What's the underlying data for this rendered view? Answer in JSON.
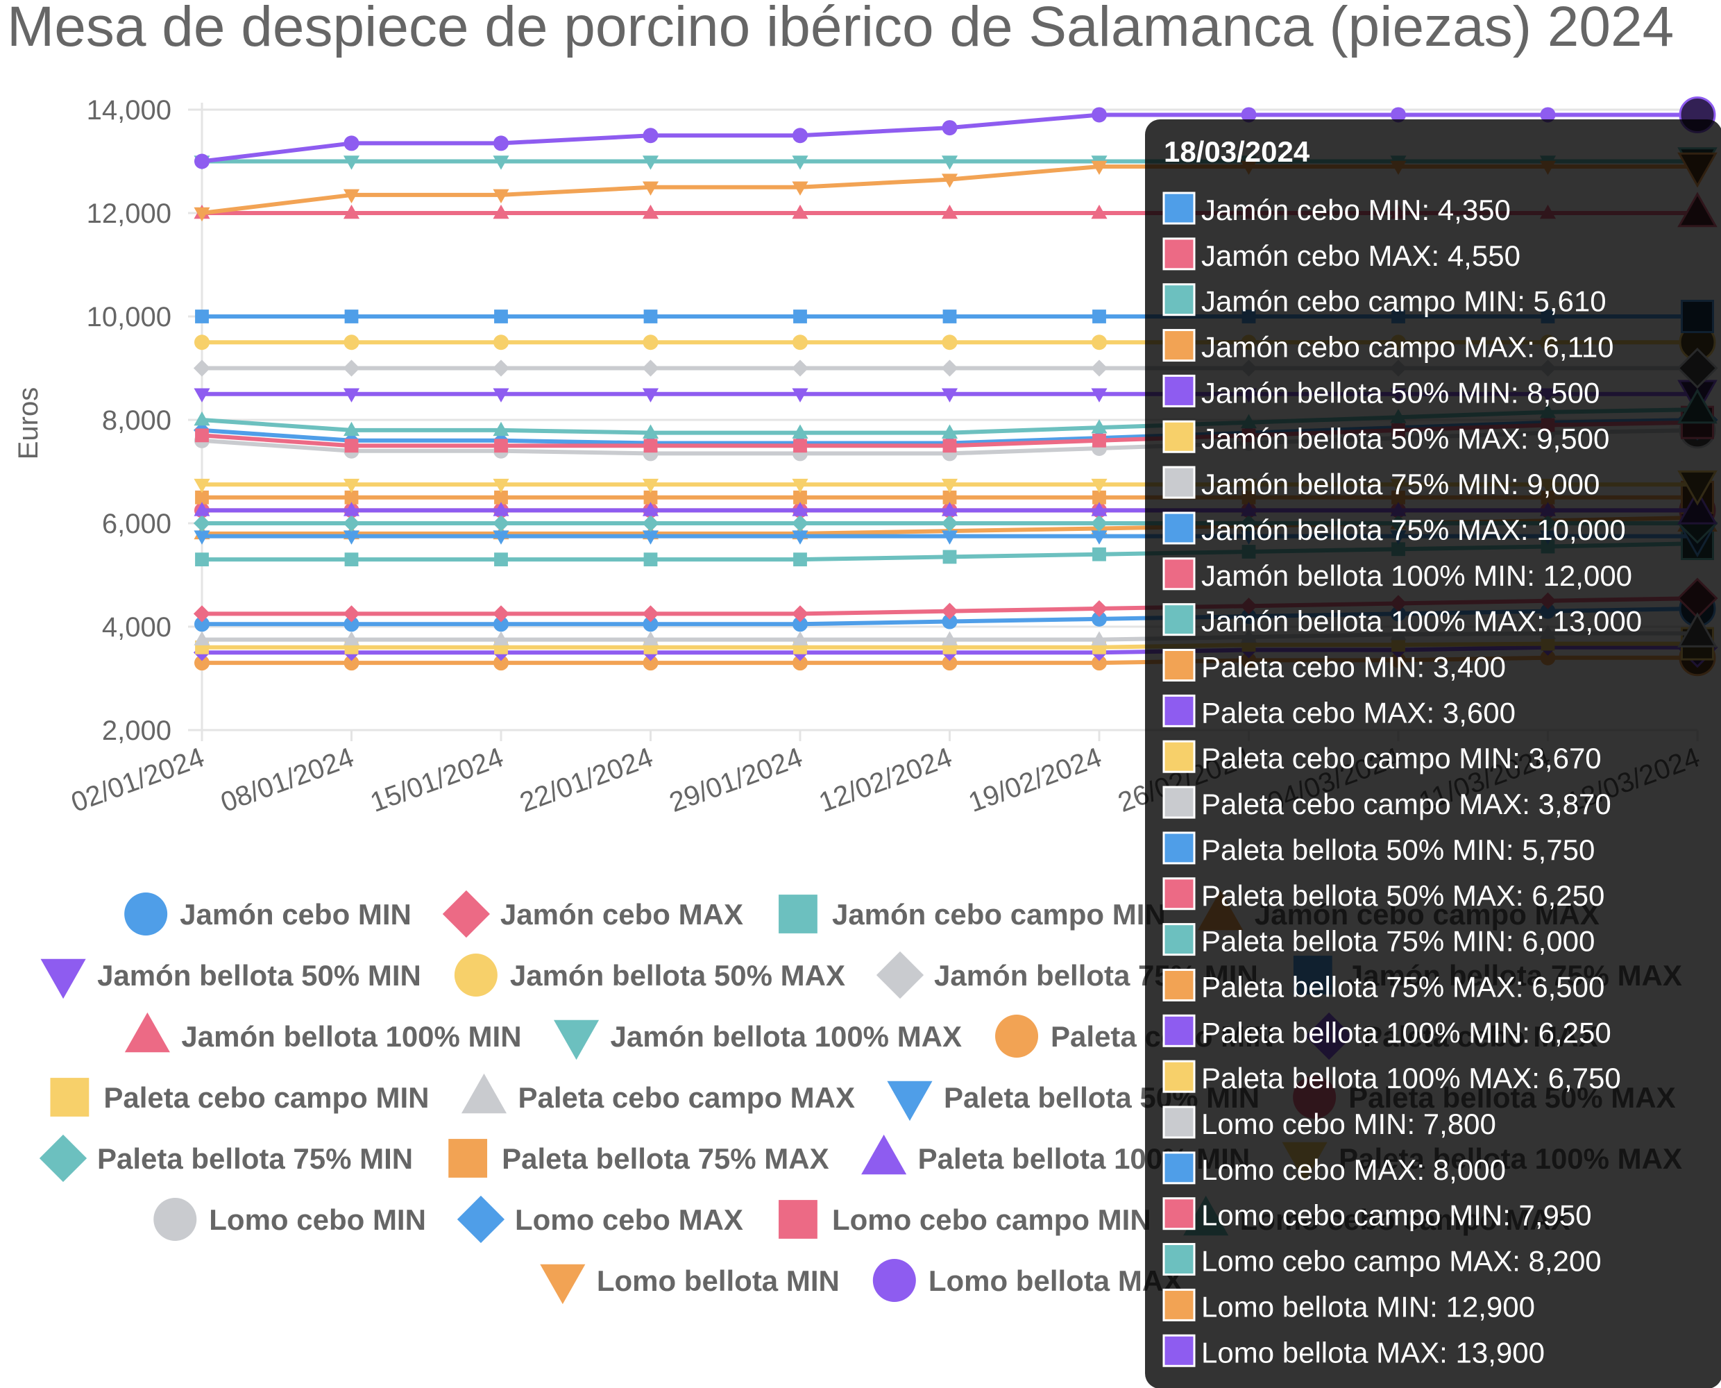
{
  "chart_data": {
    "type": "line",
    "title": "Mesa de despiece de porcino ibérico de Salamanca (piezas) 2024",
    "xlabel": "",
    "ylabel": "Euros",
    "ylim": [
      2000,
      14000
    ],
    "yticks": [
      "2,000",
      "4,000",
      "6,000",
      "8,000",
      "10,000",
      "12,000",
      "14,000"
    ],
    "ytick_values": [
      2000,
      4000,
      6000,
      8000,
      10000,
      12000,
      14000
    ],
    "x": [
      "02/01/2024",
      "08/01/2024",
      "15/01/2024",
      "22/01/2024",
      "29/01/2024",
      "12/02/2024",
      "19/02/2024",
      "26/02/2024",
      "04/03/2024",
      "11/03/2024",
      "18/03/2024"
    ],
    "grid": "horizontal",
    "legend_placement": "bottom",
    "series": [
      {
        "name": "Jamón cebo MIN",
        "color": "#4f9ee8",
        "marker": "circle",
        "values": [
          4050,
          4050,
          4050,
          4050,
          4050,
          4100,
          4150,
          4200,
          4250,
          4300,
          4350
        ]
      },
      {
        "name": "Jamón cebo MAX",
        "color": "#ec6a85",
        "marker": "diamond",
        "values": [
          4250,
          4250,
          4250,
          4250,
          4250,
          4300,
          4350,
          4400,
          4450,
          4500,
          4550
        ]
      },
      {
        "name": "Jamón cebo campo MIN",
        "color": "#6cc0bf",
        "marker": "square",
        "values": [
          5300,
          5300,
          5300,
          5300,
          5300,
          5350,
          5400,
          5450,
          5500,
          5550,
          5610
        ]
      },
      {
        "name": "Jamón cebo campo MAX",
        "color": "#f2a354",
        "marker": "triangle-up",
        "values": [
          5800,
          5800,
          5800,
          5800,
          5800,
          5850,
          5900,
          5950,
          6000,
          6050,
          6110
        ]
      },
      {
        "name": "Jamón bellota 50% MIN",
        "color": "#8e5cf0",
        "marker": "triangle-down",
        "values": [
          8500,
          8500,
          8500,
          8500,
          8500,
          8500,
          8500,
          8500,
          8500,
          8500,
          8500
        ]
      },
      {
        "name": "Jamón bellota 50% MAX",
        "color": "#f7d06a",
        "marker": "circle",
        "values": [
          9500,
          9500,
          9500,
          9500,
          9500,
          9500,
          9500,
          9500,
          9500,
          9500,
          9500
        ]
      },
      {
        "name": "Jamón bellota 75% MIN",
        "color": "#c9cbcf",
        "marker": "diamond",
        "values": [
          9000,
          9000,
          9000,
          9000,
          9000,
          9000,
          9000,
          9000,
          9000,
          9000,
          9000
        ]
      },
      {
        "name": "Jamón bellota 75% MAX",
        "color": "#4f9ee8",
        "marker": "square",
        "values": [
          10000,
          10000,
          10000,
          10000,
          10000,
          10000,
          10000,
          10000,
          10000,
          10000,
          10000
        ]
      },
      {
        "name": "Jamón bellota 100% MIN",
        "color": "#ec6a85",
        "marker": "triangle-up",
        "values": [
          12000,
          12000,
          12000,
          12000,
          12000,
          12000,
          12000,
          12000,
          12000,
          12000,
          12000
        ]
      },
      {
        "name": "Jamón bellota 100% MAX",
        "color": "#6cc0bf",
        "marker": "triangle-down",
        "values": [
          13000,
          13000,
          13000,
          13000,
          13000,
          13000,
          13000,
          13000,
          13000,
          13000,
          13000
        ]
      },
      {
        "name": "Paleta cebo MIN",
        "color": "#f2a354",
        "marker": "circle",
        "values": [
          3300,
          3300,
          3300,
          3300,
          3300,
          3300,
          3300,
          3350,
          3350,
          3400,
          3400
        ]
      },
      {
        "name": "Paleta cebo MAX",
        "color": "#8e5cf0",
        "marker": "diamond",
        "values": [
          3500,
          3500,
          3500,
          3500,
          3500,
          3500,
          3500,
          3550,
          3550,
          3600,
          3600
        ]
      },
      {
        "name": "Paleta cebo campo MIN",
        "color": "#f7d06a",
        "marker": "square",
        "values": [
          3600,
          3600,
          3600,
          3600,
          3600,
          3600,
          3600,
          3650,
          3650,
          3670,
          3670
        ]
      },
      {
        "name": "Paleta cebo campo MAX",
        "color": "#c9cbcf",
        "marker": "triangle-up",
        "values": [
          3750,
          3750,
          3750,
          3750,
          3750,
          3750,
          3750,
          3800,
          3850,
          3870,
          3870
        ]
      },
      {
        "name": "Paleta bellota 50% MIN",
        "color": "#4f9ee8",
        "marker": "triangle-down",
        "values": [
          5750,
          5750,
          5750,
          5750,
          5750,
          5750,
          5750,
          5750,
          5750,
          5750,
          5750
        ]
      },
      {
        "name": "Paleta bellota 50% MAX",
        "color": "#ec6a85",
        "marker": "circle",
        "values": [
          6250,
          6250,
          6250,
          6250,
          6250,
          6250,
          6250,
          6250,
          6250,
          6250,
          6250
        ]
      },
      {
        "name": "Paleta bellota 75% MIN",
        "color": "#6cc0bf",
        "marker": "diamond",
        "values": [
          6000,
          6000,
          6000,
          6000,
          6000,
          6000,
          6000,
          6000,
          6000,
          6000,
          6000
        ]
      },
      {
        "name": "Paleta bellota 75% MAX",
        "color": "#f2a354",
        "marker": "square",
        "values": [
          6500,
          6500,
          6500,
          6500,
          6500,
          6500,
          6500,
          6500,
          6500,
          6500,
          6500
        ]
      },
      {
        "name": "Paleta bellota 100% MIN",
        "color": "#8e5cf0",
        "marker": "triangle-up",
        "values": [
          6250,
          6250,
          6250,
          6250,
          6250,
          6250,
          6250,
          6250,
          6250,
          6250,
          6250
        ]
      },
      {
        "name": "Paleta bellota 100% MAX",
        "color": "#f7d06a",
        "marker": "triangle-down",
        "values": [
          6750,
          6750,
          6750,
          6750,
          6750,
          6750,
          6750,
          6750,
          6750,
          6750,
          6750
        ]
      },
      {
        "name": "Lomo cebo MIN",
        "color": "#c9cbcf",
        "marker": "circle",
        "values": [
          7600,
          7400,
          7400,
          7350,
          7350,
          7350,
          7450,
          7550,
          7650,
          7750,
          7800
        ]
      },
      {
        "name": "Lomo cebo MAX",
        "color": "#4f9ee8",
        "marker": "diamond",
        "values": [
          7800,
          7600,
          7600,
          7550,
          7550,
          7550,
          7650,
          7750,
          7850,
          7950,
          8000
        ]
      },
      {
        "name": "Lomo cebo campo MIN",
        "color": "#ec6a85",
        "marker": "square",
        "values": [
          7700,
          7500,
          7500,
          7500,
          7500,
          7500,
          7600,
          7700,
          7800,
          7900,
          7950
        ]
      },
      {
        "name": "Lomo cebo campo MAX",
        "color": "#6cc0bf",
        "marker": "triangle-up",
        "values": [
          8000,
          7800,
          7800,
          7750,
          7750,
          7750,
          7850,
          7950,
          8050,
          8150,
          8200
        ]
      },
      {
        "name": "Lomo bellota MIN",
        "color": "#f2a354",
        "marker": "triangle-down",
        "values": [
          12000,
          12350,
          12350,
          12500,
          12500,
          12650,
          12900,
          12900,
          12900,
          12900,
          12900
        ]
      },
      {
        "name": "Lomo bellota MAX",
        "color": "#8e5cf0",
        "marker": "circle",
        "values": [
          13000,
          13350,
          13350,
          13500,
          13500,
          13650,
          13900,
          13900,
          13900,
          13900,
          13900
        ]
      }
    ],
    "tooltip": {
      "header": "18/03/2024",
      "lines": [
        "Jamón cebo MIN: 4,350",
        "Jamón cebo MAX: 4,550",
        "Jamón cebo campo MIN: 5,610",
        "Jamón cebo campo MAX: 6,110",
        "Jamón bellota 50% MIN: 8,500",
        "Jamón bellota 50% MAX: 9,500",
        "Jamón bellota 75% MIN: 9,000",
        "Jamón bellota 75% MAX: 10,000",
        "Jamón bellota 100% MIN: 12,000",
        "Jamón bellota 100% MAX: 13,000",
        "Paleta cebo MIN: 3,400",
        "Paleta cebo MAX: 3,600",
        "Paleta cebo campo MIN: 3,670",
        "Paleta cebo campo MAX: 3,870",
        "Paleta bellota 50% MIN: 5,750",
        "Paleta bellota 50% MAX: 6,250",
        "Paleta bellota 75% MIN: 6,000",
        "Paleta bellota 75% MAX: 6,500",
        "Paleta bellota 100% MIN: 6,250",
        "Paleta bellota 100% MAX: 6,750",
        "Lomo cebo MIN: 7,800",
        "Lomo cebo MAX: 8,000",
        "Lomo cebo campo MIN: 7,950",
        "Lomo cebo campo MAX: 8,200",
        "Lomo bellota MIN: 12,900",
        "Lomo bellota MAX: 13,900"
      ]
    }
  }
}
